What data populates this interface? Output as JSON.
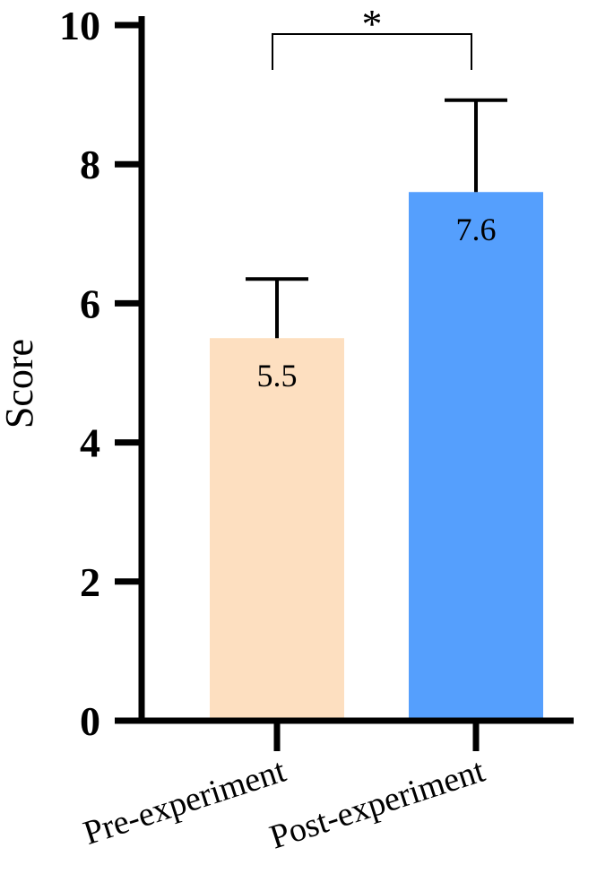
{
  "chart_data": {
    "type": "bar",
    "categories": [
      "Pre-experiment",
      "Post-experiment"
    ],
    "values": [
      5.5,
      7.6
    ],
    "error_upper": [
      6.35,
      8.92
    ],
    "data_labels": [
      "5.5",
      "7.6"
    ],
    "colors": [
      "#FDDFC0",
      "#559FFD"
    ],
    "ylabel": "Score",
    "ylim": [
      0,
      10
    ],
    "yticks": [
      "0",
      "2",
      "4",
      "6",
      "8",
      "10"
    ],
    "grid": false,
    "significance": {
      "between": [
        "Pre-experiment",
        "Post-experiment"
      ],
      "label": "*"
    }
  }
}
